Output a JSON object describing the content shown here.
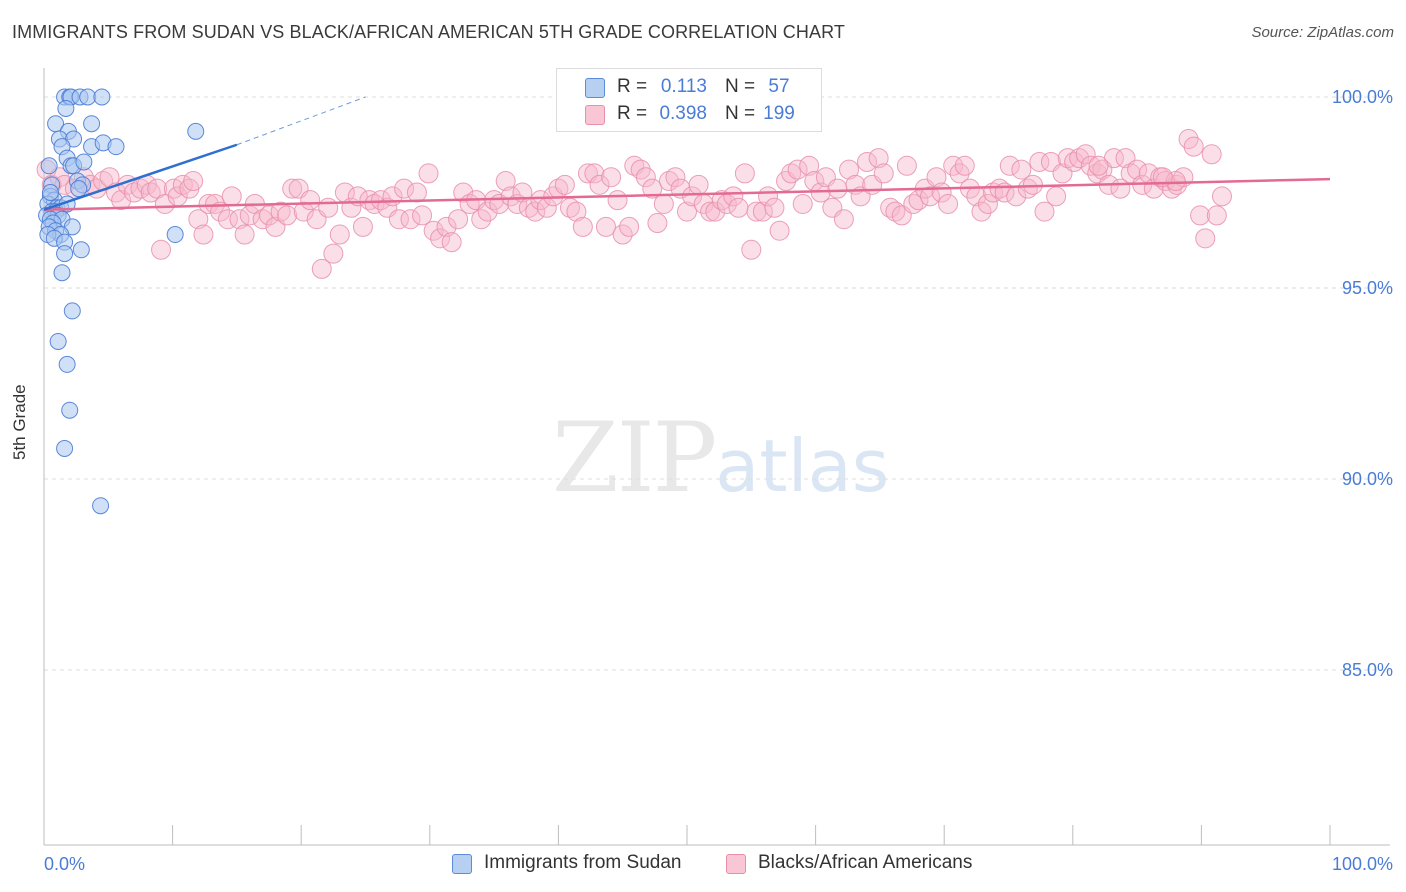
{
  "header": {
    "title": "IMMIGRANTS FROM SUDAN VS BLACK/AFRICAN AMERICAN 5TH GRADE CORRELATION CHART",
    "source": "Source: ZipAtlas.com"
  },
  "watermark": {
    "zip": "ZIP",
    "atlas": "atlas"
  },
  "legend": {
    "series": [
      {
        "r_label": "R =",
        "r_value": "0.113",
        "n_label": "N =",
        "n_value": "57"
      },
      {
        "r_label": "R =",
        "r_value": "0.398",
        "n_label": "N =",
        "n_value": "199"
      }
    ]
  },
  "chart_data": {
    "type": "scatter",
    "title": "IMMIGRANTS FROM SUDAN VS BLACK/AFRICAN AMERICAN 5TH GRADE CORRELATION CHART",
    "xlabel": "",
    "ylabel": "5th Grade",
    "xlim": [
      0,
      100
    ],
    "ylim": [
      80.3,
      100.5
    ],
    "x_tick_labels": [
      "0.0%",
      "100.0%"
    ],
    "y_ticks": [
      {
        "value": 100,
        "label": "100.0%"
      },
      {
        "value": 95,
        "label": "95.0%"
      },
      {
        "value": 90,
        "label": "90.0%"
      },
      {
        "value": 85,
        "label": "85.0%"
      }
    ],
    "colors": {
      "blue_fill": "#a9c7f0",
      "blue_stroke": "#4a7cd6",
      "blue_line": "#2f6fd0",
      "pink_fill": "#f7b8cc",
      "pink_stroke": "#e98fac",
      "pink_line": "#e36a93",
      "tick_label": "#4a7cd6",
      "grid": "#dedede"
    },
    "series": [
      {
        "name": "Immigrants from Sudan",
        "color": "#a9c7f0",
        "trend": {
          "x0": 0,
          "y0": 97.05,
          "x1": 15,
          "y1": 98.75,
          "dash_to_x": 25,
          "dash_to_y": 100.0
        },
        "points": [
          [
            1.6,
            100.0
          ],
          [
            2.0,
            100.0
          ],
          [
            2.1,
            100.0
          ],
          [
            2.8,
            100.0
          ],
          [
            3.4,
            100.0
          ],
          [
            4.5,
            100.0
          ],
          [
            1.7,
            99.7
          ],
          [
            0.9,
            99.3
          ],
          [
            3.7,
            99.3
          ],
          [
            1.9,
            99.1
          ],
          [
            1.2,
            98.9
          ],
          [
            2.3,
            98.9
          ],
          [
            1.4,
            98.7
          ],
          [
            3.7,
            98.7
          ],
          [
            4.6,
            98.8
          ],
          [
            5.6,
            98.7
          ],
          [
            11.8,
            99.1
          ],
          [
            1.8,
            98.4
          ],
          [
            0.4,
            98.2
          ],
          [
            2.1,
            98.2
          ],
          [
            2.3,
            98.2
          ],
          [
            3.1,
            98.3
          ],
          [
            0.6,
            97.7
          ],
          [
            2.6,
            97.8
          ],
          [
            3.0,
            97.7
          ],
          [
            0.5,
            97.4
          ],
          [
            0.8,
            97.3
          ],
          [
            0.3,
            97.2
          ],
          [
            1.0,
            97.1
          ],
          [
            1.3,
            97.1
          ],
          [
            0.6,
            97.0
          ],
          [
            0.9,
            97.0
          ],
          [
            0.2,
            96.9
          ],
          [
            1.1,
            96.9
          ],
          [
            0.5,
            96.8
          ],
          [
            1.4,
            96.8
          ],
          [
            0.7,
            96.7
          ],
          [
            0.4,
            96.6
          ],
          [
            2.2,
            96.6
          ],
          [
            0.9,
            96.5
          ],
          [
            1.3,
            96.4
          ],
          [
            0.3,
            96.4
          ],
          [
            0.8,
            96.3
          ],
          [
            1.6,
            96.2
          ],
          [
            10.2,
            96.4
          ],
          [
            2.9,
            96.0
          ],
          [
            1.6,
            95.9
          ],
          [
            1.4,
            95.4
          ],
          [
            2.2,
            94.4
          ],
          [
            1.1,
            93.6
          ],
          [
            1.8,
            93.0
          ],
          [
            2.0,
            91.8
          ],
          [
            1.6,
            90.8
          ],
          [
            4.4,
            89.3
          ],
          [
            0.5,
            97.5
          ],
          [
            1.8,
            97.2
          ],
          [
            2.7,
            97.6
          ]
        ]
      },
      {
        "name": "Blacks/African Americans",
        "color": "#f7b8cc",
        "trend": {
          "x0": 0,
          "y0": 97.05,
          "x1": 100,
          "y1": 97.85
        },
        "points": [
          [
            0.2,
            98.1
          ],
          [
            0.6,
            97.7
          ],
          [
            1.2,
            97.9
          ],
          [
            1.6,
            97.7
          ],
          [
            2.4,
            97.6
          ],
          [
            3.1,
            97.9
          ],
          [
            3.6,
            97.7
          ],
          [
            4.1,
            97.6
          ],
          [
            4.6,
            97.8
          ],
          [
            5.1,
            97.9
          ],
          [
            5.6,
            97.5
          ],
          [
            6.0,
            97.3
          ],
          [
            6.5,
            97.7
          ],
          [
            7.0,
            97.5
          ],
          [
            7.5,
            97.6
          ],
          [
            8.0,
            97.7
          ],
          [
            8.3,
            97.5
          ],
          [
            8.8,
            97.6
          ],
          [
            9.1,
            96.0
          ],
          [
            9.4,
            97.2
          ],
          [
            10.1,
            97.6
          ],
          [
            10.4,
            97.4
          ],
          [
            10.8,
            97.7
          ],
          [
            11.3,
            97.6
          ],
          [
            11.6,
            97.8
          ],
          [
            12.0,
            96.8
          ],
          [
            12.4,
            96.4
          ],
          [
            12.8,
            97.2
          ],
          [
            13.3,
            97.2
          ],
          [
            13.7,
            97.0
          ],
          [
            14.3,
            96.8
          ],
          [
            14.6,
            97.4
          ],
          [
            15.2,
            96.8
          ],
          [
            15.6,
            96.4
          ],
          [
            16.0,
            96.9
          ],
          [
            16.4,
            97.2
          ],
          [
            17.0,
            96.8
          ],
          [
            17.5,
            96.9
          ],
          [
            18.0,
            96.6
          ],
          [
            18.4,
            97.0
          ],
          [
            18.9,
            96.9
          ],
          [
            19.3,
            97.6
          ],
          [
            19.8,
            97.6
          ],
          [
            20.2,
            97.0
          ],
          [
            20.7,
            97.3
          ],
          [
            21.2,
            96.8
          ],
          [
            21.6,
            95.5
          ],
          [
            22.1,
            97.1
          ],
          [
            22.5,
            95.9
          ],
          [
            23.0,
            96.4
          ],
          [
            23.4,
            97.5
          ],
          [
            23.9,
            97.1
          ],
          [
            24.4,
            97.4
          ],
          [
            24.8,
            96.6
          ],
          [
            25.3,
            97.3
          ],
          [
            25.7,
            97.2
          ],
          [
            26.2,
            97.3
          ],
          [
            26.7,
            97.1
          ],
          [
            27.1,
            97.4
          ],
          [
            27.6,
            96.8
          ],
          [
            28.0,
            97.6
          ],
          [
            28.5,
            96.8
          ],
          [
            29.0,
            97.5
          ],
          [
            29.4,
            96.9
          ],
          [
            29.9,
            98.0
          ],
          [
            30.3,
            96.5
          ],
          [
            30.8,
            96.3
          ],
          [
            31.3,
            96.6
          ],
          [
            31.7,
            96.2
          ],
          [
            32.2,
            96.8
          ],
          [
            32.6,
            97.5
          ],
          [
            33.1,
            97.2
          ],
          [
            33.6,
            97.3
          ],
          [
            34.0,
            96.8
          ],
          [
            34.5,
            97.0
          ],
          [
            35.0,
            97.3
          ],
          [
            35.4,
            97.2
          ],
          [
            35.9,
            97.8
          ],
          [
            36.3,
            97.4
          ],
          [
            36.8,
            97.2
          ],
          [
            37.2,
            97.5
          ],
          [
            37.7,
            97.1
          ],
          [
            38.2,
            97.0
          ],
          [
            38.6,
            97.3
          ],
          [
            39.1,
            97.1
          ],
          [
            39.6,
            97.4
          ],
          [
            40.0,
            97.6
          ],
          [
            40.5,
            97.7
          ],
          [
            40.9,
            97.1
          ],
          [
            41.4,
            97.0
          ],
          [
            41.9,
            96.6
          ],
          [
            42.3,
            98.0
          ],
          [
            42.8,
            98.0
          ],
          [
            43.2,
            97.7
          ],
          [
            43.7,
            96.6
          ],
          [
            44.1,
            97.9
          ],
          [
            44.6,
            97.3
          ],
          [
            45.0,
            96.4
          ],
          [
            45.5,
            96.6
          ],
          [
            45.9,
            98.2
          ],
          [
            46.4,
            98.1
          ],
          [
            46.8,
            97.9
          ],
          [
            47.3,
            97.6
          ],
          [
            47.7,
            96.7
          ],
          [
            48.2,
            97.2
          ],
          [
            48.6,
            97.8
          ],
          [
            49.1,
            97.9
          ],
          [
            49.5,
            97.6
          ],
          [
            50.0,
            97.0
          ],
          [
            50.4,
            97.4
          ],
          [
            50.9,
            97.7
          ],
          [
            51.3,
            97.2
          ],
          [
            51.8,
            97.0
          ],
          [
            52.2,
            97.0
          ],
          [
            52.7,
            97.3
          ],
          [
            53.1,
            97.2
          ],
          [
            53.6,
            97.4
          ],
          [
            54.0,
            97.1
          ],
          [
            54.5,
            98.0
          ],
          [
            55.0,
            96.0
          ],
          [
            55.4,
            97.0
          ],
          [
            55.9,
            97.0
          ],
          [
            56.3,
            97.4
          ],
          [
            56.8,
            97.1
          ],
          [
            57.2,
            96.5
          ],
          [
            57.7,
            97.8
          ],
          [
            58.1,
            98.0
          ],
          [
            58.6,
            98.1
          ],
          [
            59.0,
            97.2
          ],
          [
            59.5,
            98.2
          ],
          [
            59.9,
            97.8
          ],
          [
            60.4,
            97.5
          ],
          [
            60.8,
            97.9
          ],
          [
            61.3,
            97.1
          ],
          [
            61.7,
            97.6
          ],
          [
            62.2,
            96.8
          ],
          [
            62.6,
            98.1
          ],
          [
            63.1,
            97.7
          ],
          [
            63.5,
            97.4
          ],
          [
            64.0,
            98.3
          ],
          [
            64.4,
            97.7
          ],
          [
            64.9,
            98.4
          ],
          [
            65.3,
            98.0
          ],
          [
            65.8,
            97.1
          ],
          [
            66.2,
            97.0
          ],
          [
            66.7,
            96.9
          ],
          [
            67.1,
            98.2
          ],
          [
            67.6,
            97.2
          ],
          [
            68.0,
            97.3
          ],
          [
            68.5,
            97.6
          ],
          [
            68.9,
            97.4
          ],
          [
            69.4,
            97.9
          ],
          [
            69.8,
            97.5
          ],
          [
            70.3,
            97.2
          ],
          [
            70.7,
            98.2
          ],
          [
            71.2,
            98.0
          ],
          [
            71.6,
            98.2
          ],
          [
            72.0,
            97.6
          ],
          [
            72.5,
            97.4
          ],
          [
            72.9,
            97.0
          ],
          [
            73.4,
            97.2
          ],
          [
            73.8,
            97.5
          ],
          [
            74.3,
            97.6
          ],
          [
            74.7,
            97.5
          ],
          [
            75.1,
            98.2
          ],
          [
            75.6,
            97.4
          ],
          [
            76.0,
            98.1
          ],
          [
            76.5,
            97.6
          ],
          [
            76.9,
            97.7
          ],
          [
            77.4,
            98.3
          ],
          [
            77.8,
            97.0
          ],
          [
            78.3,
            98.3
          ],
          [
            78.7,
            97.4
          ],
          [
            79.2,
            98.0
          ],
          [
            79.6,
            98.4
          ],
          [
            80.1,
            98.3
          ],
          [
            80.5,
            98.4
          ],
          [
            81.0,
            98.5
          ],
          [
            81.4,
            98.2
          ],
          [
            81.9,
            98.0
          ],
          [
            82.3,
            98.1
          ],
          [
            82.8,
            97.7
          ],
          [
            83.2,
            98.4
          ],
          [
            83.7,
            97.6
          ],
          [
            84.1,
            98.4
          ],
          [
            84.5,
            98.0
          ],
          [
            85.0,
            98.1
          ],
          [
            85.4,
            97.7
          ],
          [
            85.9,
            98.0
          ],
          [
            86.3,
            97.6
          ],
          [
            86.8,
            97.9
          ],
          [
            87.2,
            97.8
          ],
          [
            87.7,
            97.6
          ],
          [
            88.1,
            97.7
          ],
          [
            88.6,
            97.9
          ],
          [
            89.0,
            98.9
          ],
          [
            89.4,
            98.7
          ],
          [
            89.9,
            96.9
          ],
          [
            90.3,
            96.3
          ],
          [
            90.8,
            98.5
          ],
          [
            91.2,
            96.9
          ],
          [
            91.6,
            97.4
          ],
          [
            88.0,
            97.8
          ],
          [
            87.0,
            97.9
          ],
          [
            82.0,
            98.2
          ]
        ]
      }
    ]
  },
  "bottom_legend": {
    "items": [
      {
        "label": "Immigrants from Sudan"
      },
      {
        "label": "Blacks/African Americans"
      }
    ]
  }
}
